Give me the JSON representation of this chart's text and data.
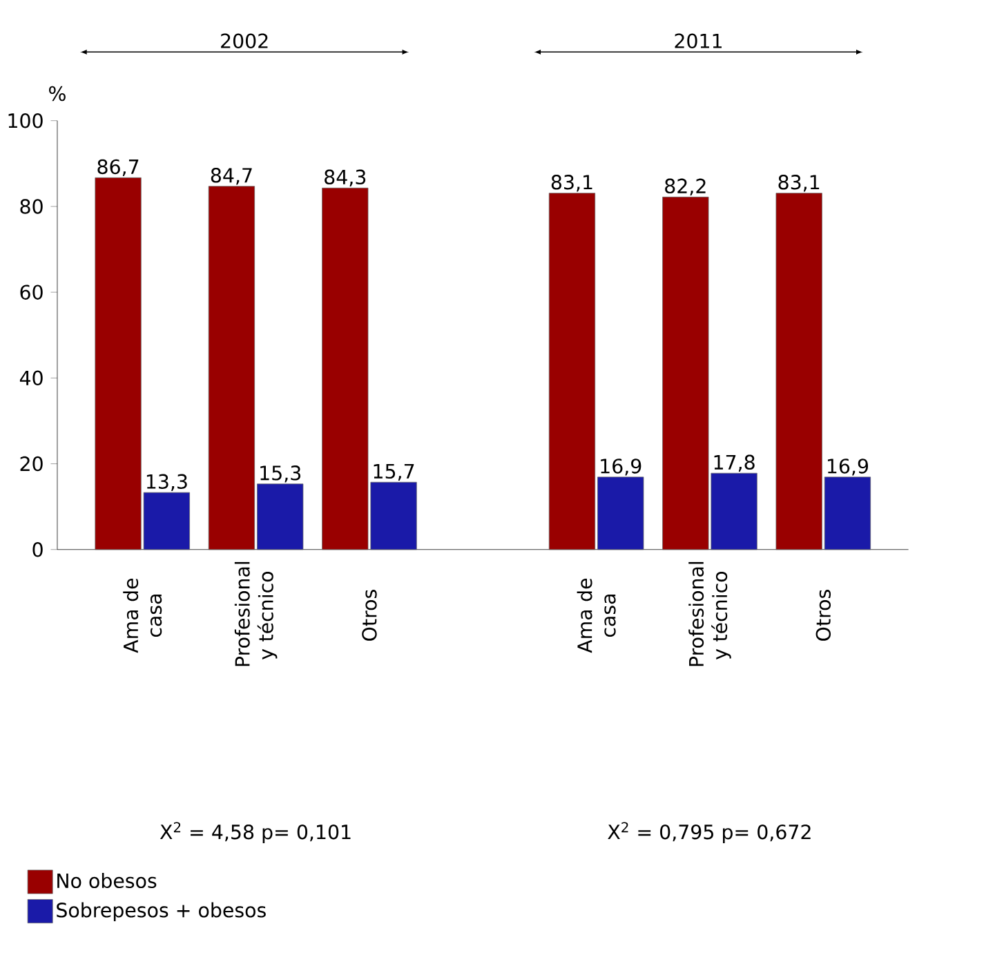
{
  "chart_data": {
    "type": "bar",
    "ylabel": "%",
    "categories": [
      "Ama de casa",
      "Profesional y técnico",
      "Otros",
      null,
      "Ama de casa",
      "Profesional y técnico",
      "Otros"
    ],
    "series": [
      {
        "name": "No obesos",
        "color": "#990000",
        "values": [
          86.7,
          84.7,
          84.3,
          null,
          83.1,
          82.2,
          83.1
        ],
        "value_labels": [
          "86,7",
          "84,7",
          "84,3",
          null,
          "83,1",
          "82,2",
          "83,1"
        ]
      },
      {
        "name": "Sobrepesos + obesos",
        "color": "#1a1aa8",
        "values": [
          13.3,
          15.3,
          15.7,
          null,
          16.9,
          17.8,
          16.9
        ],
        "value_labels": [
          "13,3",
          "15,3",
          "15,7",
          null,
          "16,9",
          "17,8",
          "16,9"
        ]
      }
    ],
    "ylim": [
      0,
      100
    ],
    "yticks": [
      0,
      20,
      40,
      60,
      80,
      100
    ],
    "grid": false,
    "legend": "bottom left",
    "annotations": [
      "2002",
      "2011",
      "X$^{2}$ = 4,58  p= 0,101",
      "X$^{2}$ = 0,795  p= 0,672"
    ]
  }
}
